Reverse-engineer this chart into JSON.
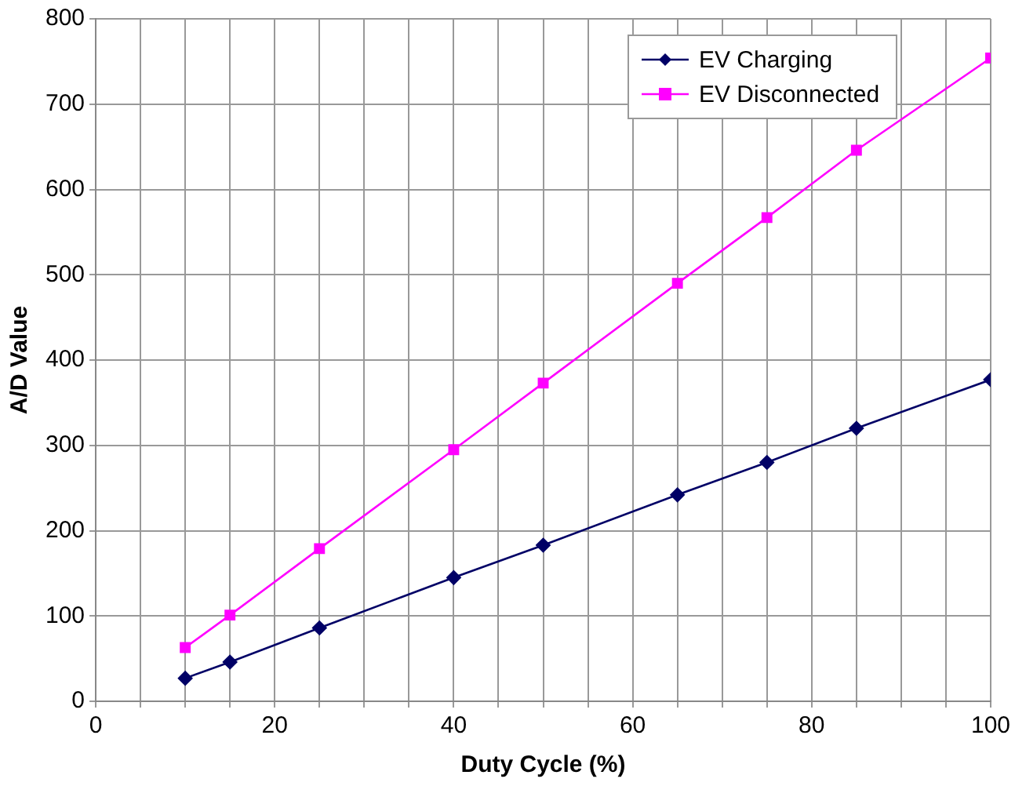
{
  "chart_data": {
    "type": "line",
    "xlabel": "Duty Cycle (%)",
    "ylabel": "A/D Value",
    "x": [
      10,
      15,
      25,
      40,
      50,
      65,
      75,
      85,
      100
    ],
    "series": [
      {
        "name": "EV Charging",
        "color": "#000066",
        "marker": "diamond",
        "values": [
          27,
          46,
          86,
          145,
          183,
          242,
          280,
          320,
          377
        ]
      },
      {
        "name": "EV Disconnected",
        "color": "#ff00ff",
        "marker": "square",
        "values": [
          63,
          101,
          179,
          295,
          373,
          490,
          567,
          646,
          754
        ]
      }
    ],
    "xlim": [
      0,
      100
    ],
    "xticks": [
      0,
      {
        "value": 5,
        "label": null
      },
      {
        "value": 10,
        "label": null
      },
      {
        "value": 15,
        "label": null
      },
      20,
      {
        "value": 25,
        "label": null
      },
      {
        "value": 30,
        "label": null
      },
      {
        "value": 35,
        "label": null
      },
      40,
      {
        "value": 45,
        "label": null
      },
      {
        "value": 50,
        "label": null
      },
      {
        "value": 55,
        "label": null
      },
      60,
      {
        "value": 65,
        "label": null
      },
      {
        "value": 70,
        "label": null
      },
      {
        "value": 75,
        "label": null
      },
      80,
      {
        "value": 85,
        "label": null
      },
      {
        "value": 90,
        "label": null
      },
      {
        "value": 95,
        "label": null
      },
      100
    ],
    "ylim": [
      0,
      800
    ],
    "yticks": [
      0,
      100,
      200,
      300,
      400,
      500,
      600,
      700,
      800
    ],
    "grid": true,
    "legend": "top right",
    "line_style": "solid"
  }
}
